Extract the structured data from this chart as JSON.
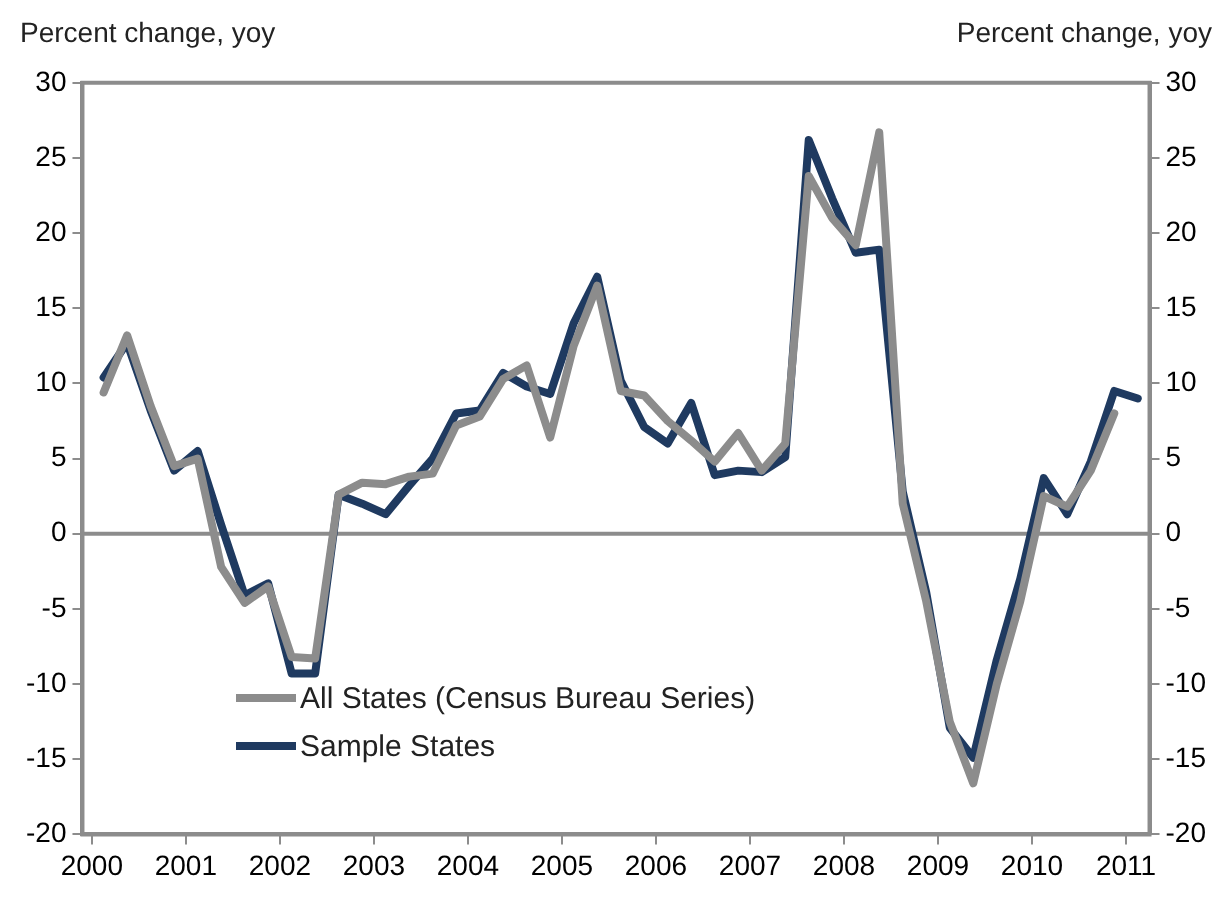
{
  "chart_data": {
    "type": "line",
    "ylabel": "Percent change, yoy",
    "y2label": "Percent change, yoy",
    "x": [
      2000.125,
      2000.375,
      2000.625,
      2000.875,
      2001.125,
      2001.375,
      2001.625,
      2001.875,
      2002.125,
      2002.375,
      2002.625,
      2002.875,
      2003.125,
      2003.375,
      2003.625,
      2003.875,
      2004.125,
      2004.375,
      2004.625,
      2004.875,
      2005.125,
      2005.375,
      2005.625,
      2005.875,
      2006.125,
      2006.375,
      2006.625,
      2006.875,
      2007.125,
      2007.375,
      2007.625,
      2007.875,
      2008.125,
      2008.375,
      2008.625,
      2008.875,
      2009.125,
      2009.375,
      2009.625,
      2009.875,
      2010.125,
      2010.375,
      2010.625,
      2010.875,
      2011.125
    ],
    "series": [
      {
        "name": "All States (Census Bureau Series)",
        "color": "#8c8c8c",
        "values": [
          9.4,
          13.2,
          8.5,
          4.5,
          5.0,
          -2.2,
          -4.6,
          -3.5,
          -8.2,
          -8.3,
          2.6,
          3.4,
          3.3,
          3.8,
          4.0,
          7.2,
          7.8,
          10.3,
          11.2,
          6.4,
          12.5,
          16.5,
          9.5,
          9.2,
          7.5,
          6.2,
          4.8,
          6.7,
          4.2,
          6.0,
          23.8,
          21.0,
          19.2,
          26.7,
          2.0,
          -4.5,
          -12.5,
          -16.6,
          -10.0,
          -4.5,
          2.5,
          1.8,
          4.2,
          8.0,
          null
        ]
      },
      {
        "name": "Sample States",
        "color": "#1f3a60",
        "values": [
          10.4,
          12.7,
          8.2,
          4.2,
          5.5,
          0.6,
          -4.1,
          -3.3,
          -9.3,
          -9.3,
          2.6,
          2.0,
          1.3,
          3.2,
          5.0,
          8.0,
          8.2,
          10.7,
          9.8,
          9.3,
          14.0,
          17.1,
          10.2,
          7.1,
          6.0,
          8.7,
          3.9,
          4.2,
          4.1,
          5.1,
          26.2,
          22.3,
          18.7,
          18.9,
          2.8,
          -3.9,
          -12.9,
          -14.9,
          -8.4,
          -3.0,
          3.7,
          1.3,
          4.8,
          9.5,
          9.0
        ]
      }
    ],
    "xlim": [
      1999.9,
      2011.25
    ],
    "xticks": [
      2000,
      2001,
      2002,
      2003,
      2004,
      2005,
      2006,
      2007,
      2008,
      2009,
      2010,
      2011
    ],
    "ylim": [
      -20,
      30
    ],
    "yticks": [
      -20,
      -15,
      -10,
      -5,
      0,
      5,
      10,
      15,
      20,
      25,
      30
    ],
    "y2lim": [
      -20,
      30
    ],
    "y2ticks": [
      -20,
      -15,
      -10,
      -5,
      0,
      5,
      10,
      15,
      20,
      25,
      30
    ],
    "ref_lines": [
      {
        "axis": "y",
        "value": 0,
        "color": "#8c8c8c"
      }
    ],
    "grid": false,
    "legend": "bottom left",
    "marker": "none",
    "line_style": "solid"
  }
}
